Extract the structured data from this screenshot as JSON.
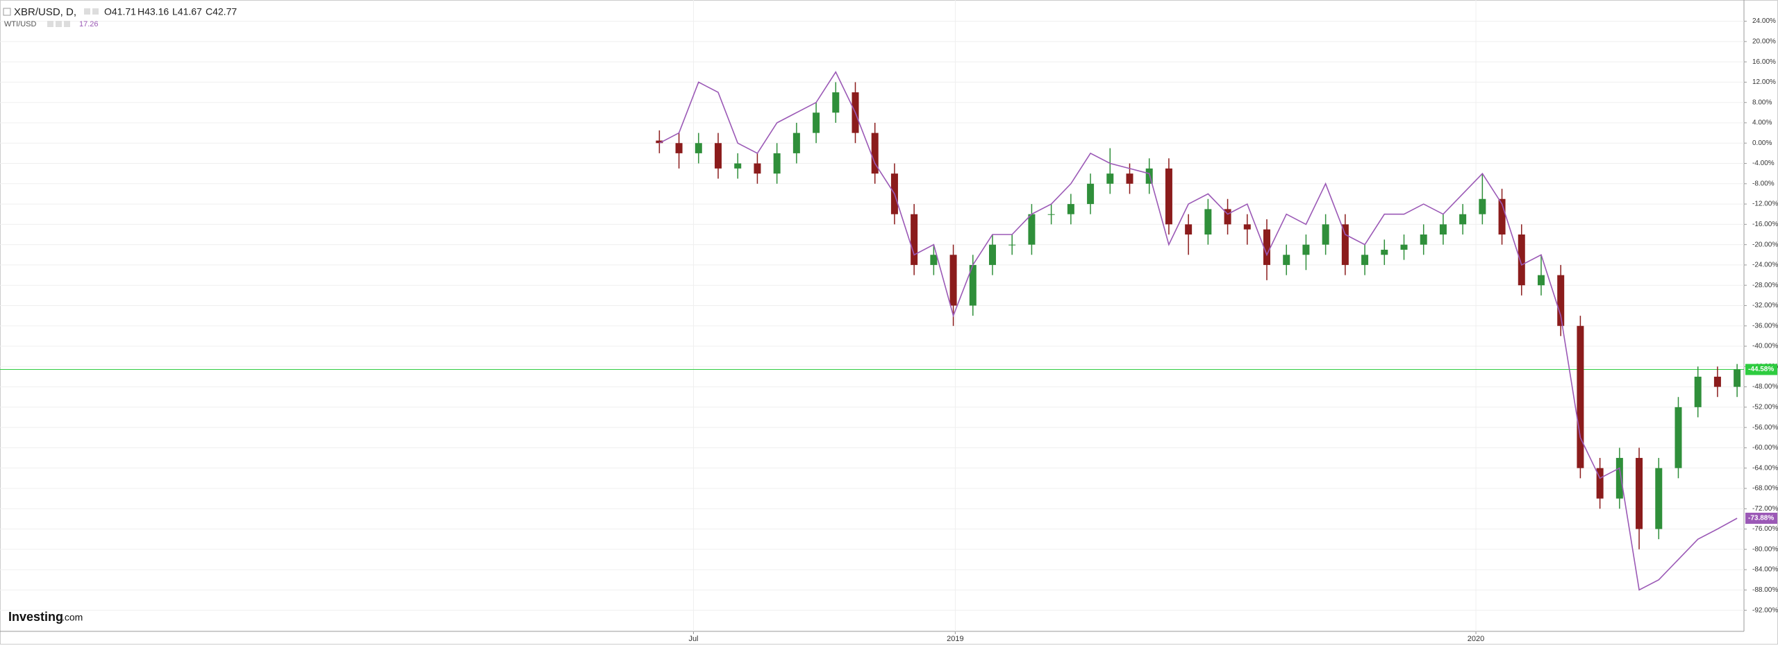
{
  "chart_data": {
    "type": "candlestick",
    "title": "XBR/USD, D,",
    "ohlc_text": [
      "O41.71",
      "H43.16",
      "L41.67",
      "C42.77"
    ],
    "brand": "Investing",
    "brand_suffix": ".com",
    "series": [
      {
        "kind": "candles",
        "color_up": "#2f8f3a",
        "color_down": "#8b1c1c",
        "last_color": "#2ecc40",
        "last_label": "-44.58%",
        "open": [
          0.5,
          0,
          -2,
          0,
          -5,
          -4,
          -6,
          -2,
          2,
          6,
          10,
          2,
          -6,
          -14,
          -24,
          -22,
          -32,
          -24,
          -20,
          -20,
          -14,
          -14,
          -12,
          -8,
          -6,
          -8,
          -5,
          -16,
          -18,
          -13,
          -16,
          -17,
          -24,
          -22,
          -20,
          -16,
          -24,
          -22,
          -21,
          -20,
          -18,
          -16,
          -14,
          -11,
          -18,
          -28,
          -26,
          -36,
          -64,
          -70,
          -62,
          -76,
          -64,
          -52,
          -46,
          -48
        ],
        "high": [
          2.5,
          2,
          2,
          2,
          -2,
          -2,
          0,
          4,
          8,
          12,
          12,
          4,
          -4,
          -12,
          -20,
          -20,
          -22,
          -18,
          -18,
          -12,
          -12,
          -10,
          -6,
          -1,
          -4,
          -3,
          -3,
          -14,
          -11,
          -11,
          -14,
          -15,
          -20,
          -18,
          -14,
          -14,
          -20,
          -19,
          -18,
          -16,
          -14,
          -12,
          -6,
          -9,
          -16,
          -22,
          -24,
          -34,
          -62,
          -60,
          -60,
          -62,
          -50,
          -44,
          -44,
          -43.5
        ],
        "low": [
          -2,
          -5,
          -4,
          -7,
          -7,
          -8,
          -8,
          -4,
          0,
          4,
          0,
          -8,
          -16,
          -26,
          -26,
          -36,
          -34,
          -26,
          -22,
          -22,
          -16,
          -16,
          -14,
          -10,
          -10,
          -10,
          -18,
          -22,
          -20,
          -18,
          -20,
          -27,
          -26,
          -25,
          -22,
          -26,
          -26,
          -24,
          -23,
          -22,
          -20,
          -18,
          -16,
          -20,
          -30,
          -30,
          -38,
          -66,
          -72,
          -72,
          -80,
          -78,
          -66,
          -54,
          -50,
          -50
        ],
        "close": [
          0,
          -2,
          0,
          -5,
          -4,
          -6,
          -2,
          2,
          6,
          10,
          2,
          -6,
          -14,
          -24,
          -22,
          -32,
          -24,
          -20,
          -20,
          -14,
          -14,
          -12,
          -8,
          -6,
          -8,
          -5,
          -16,
          -18,
          -13,
          -16,
          -17,
          -24,
          -22,
          -20,
          -16,
          -24,
          -22,
          -21,
          -20,
          -18,
          -16,
          -14,
          -11,
          -18,
          -28,
          -26,
          -36,
          -64,
          -70,
          -62,
          -76,
          -64,
          -52,
          -46,
          -48,
          -44.58
        ]
      },
      {
        "kind": "line",
        "name": "WTI/USD",
        "header_value": 17.26,
        "color": "#9b59b6",
        "last_label": "-73.88%",
        "values": [
          0,
          2,
          12,
          10,
          0,
          -2,
          4,
          6,
          8,
          14,
          6,
          -4,
          -10,
          -22,
          -20,
          -34,
          -24,
          -18,
          -18,
          -14,
          -12,
          -8,
          -2,
          -4,
          -5,
          -6,
          -20,
          -12,
          -10,
          -14,
          -12,
          -22,
          -14,
          -16,
          -8,
          -18,
          -20,
          -14,
          -14,
          -12,
          -14,
          -10,
          -6,
          -12,
          -24,
          -22,
          -34,
          -58,
          -66,
          -64,
          -88,
          -86,
          -82,
          -78,
          -76,
          -73.88
        ]
      }
    ],
    "xlim": [
      -33.65,
      55.35
    ],
    "xticks": [
      {
        "value": 1.74,
        "label": "Jul"
      },
      {
        "value": 15.1,
        "label": "2019"
      },
      {
        "value": 41.67,
        "label": "2020"
      }
    ],
    "ylim": [
      -96.15,
      28.18
    ],
    "yticks": [
      {
        "value": 24,
        "label": "24.00%"
      },
      {
        "value": 20,
        "label": "20.00%"
      },
      {
        "value": 16,
        "label": "16.00%"
      },
      {
        "value": 12,
        "label": "12.00%"
      },
      {
        "value": 8,
        "label": "8.00%"
      },
      {
        "value": 4,
        "label": "4.00%"
      },
      {
        "value": 0,
        "label": "0.00%"
      },
      {
        "value": -4,
        "label": "-4.00%"
      },
      {
        "value": -8,
        "label": "-8.00%"
      },
      {
        "value": -12,
        "label": "-12.00%"
      },
      {
        "value": -16,
        "label": "-16.00%"
      },
      {
        "value": -20,
        "label": "-20.00%"
      },
      {
        "value": -24,
        "label": "-24.00%"
      },
      {
        "value": -28,
        "label": "-28.00%"
      },
      {
        "value": -32,
        "label": "-32.00%"
      },
      {
        "value": -36,
        "label": "-36.00%"
      },
      {
        "value": -40,
        "label": "-40.00%"
      },
      {
        "value": -44,
        "label": "-44.00%"
      },
      {
        "value": -48,
        "label": "-48.00%"
      },
      {
        "value": -52,
        "label": "-52.00%"
      },
      {
        "value": -56,
        "label": "-56.00%"
      },
      {
        "value": -60,
        "label": "-60.00%"
      },
      {
        "value": -64,
        "label": "-64.00%"
      },
      {
        "value": -68,
        "label": "-68.00%"
      },
      {
        "value": -72,
        "label": "-72.00%"
      },
      {
        "value": -76,
        "label": "-76.00%"
      },
      {
        "value": -80,
        "label": "-80.00%"
      },
      {
        "value": -84,
        "label": "-84.00%"
      },
      {
        "value": -88,
        "label": "-88.00%"
      },
      {
        "value": -92,
        "label": "-92.00%"
      }
    ],
    "grid": true
  }
}
